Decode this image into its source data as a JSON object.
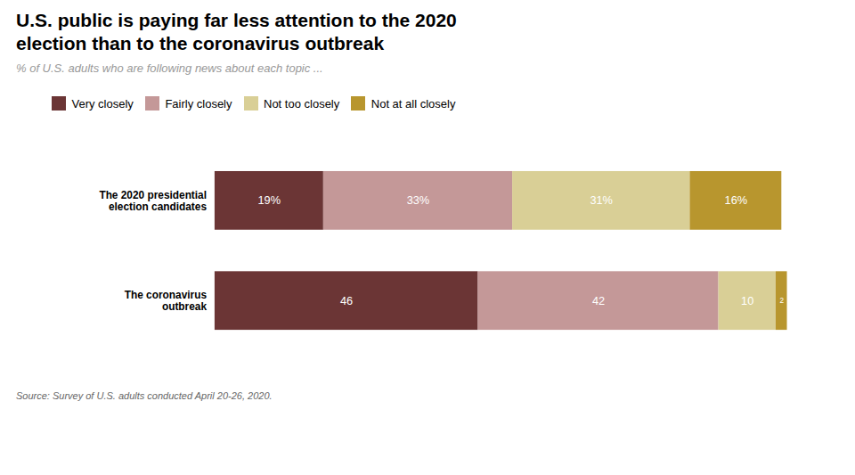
{
  "chart_data": {
    "type": "bar",
    "orientation": "horizontal",
    "stacked": true,
    "data_labels": true,
    "tick_labels": "y",
    "title": "U.S. public is paying far less attention to the 2020\nelection than to the coronavirus outbreak",
    "subtitle": "% of U.S. adults who are following news about each topic ...",
    "source": "Source: Survey of U.S. adults conducted April 20-26, 2020.",
    "categories": [
      "The 2020 presidential\nelection candidates",
      "The coronavirus\noutbreak"
    ],
    "xlim": [
      0,
      100
    ],
    "series": [
      {
        "name": "Very closely",
        "color": "#6b3535",
        "values": [
          19,
          46
        ],
        "value_labels": [
          "19%",
          "46"
        ]
      },
      {
        "name": "Fairly closely",
        "color": "#c49898",
        "values": [
          33,
          42
        ],
        "value_labels": [
          "33%",
          "42"
        ]
      },
      {
        "name": "Not too closely",
        "color": "#d9cf96",
        "values": [
          31,
          10
        ],
        "value_labels": [
          "31%",
          "10"
        ]
      },
      {
        "name": "Not at all closely",
        "color": "#b8962e",
        "values": [
          16,
          2
        ],
        "value_labels": [
          "16%",
          "2"
        ]
      }
    ]
  }
}
